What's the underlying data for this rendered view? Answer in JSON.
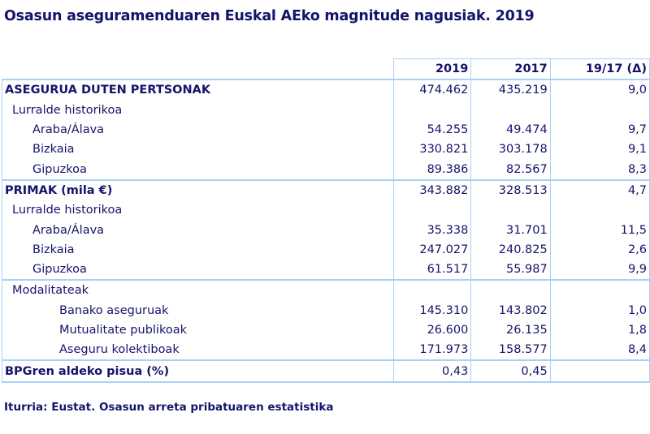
{
  "title": "Osasun aseguramenduaren Euskal AEko magnitude nagusiak. 2019",
  "columns": [
    "2019",
    "2017",
    "19/17 (Δ)"
  ],
  "rows": [
    {
      "label": "ASEGURUA DUTEN PERTSONAK",
      "v2019": "474.462",
      "v2017": "435.219",
      "delta": "9,0"
    },
    {
      "label": "Lurralde historikoa",
      "v2019": "",
      "v2017": "",
      "delta": ""
    },
    {
      "label": "Araba/Álava",
      "v2019": "54.255",
      "v2017": "49.474",
      "delta": "9,7"
    },
    {
      "label": "Bizkaia",
      "v2019": "330.821",
      "v2017": "303.178",
      "delta": "9,1"
    },
    {
      "label": "Gipuzkoa",
      "v2019": "89.386",
      "v2017": "82.567",
      "delta": "8,3"
    },
    {
      "label": "PRIMAK (mila €)",
      "v2019": "343.882",
      "v2017": "328.513",
      "delta": "4,7"
    },
    {
      "label": "Lurralde historikoa",
      "v2019": "",
      "v2017": "",
      "delta": ""
    },
    {
      "label": "Araba/Álava",
      "v2019": "35.338",
      "v2017": "31.701",
      "delta": "11,5"
    },
    {
      "label": "Bizkaia",
      "v2019": "247.027",
      "v2017": "240.825",
      "delta": "2,6"
    },
    {
      "label": "Gipuzkoa",
      "v2019": "61.517",
      "v2017": "55.987",
      "delta": "9,9"
    },
    {
      "label": "Modalitateak",
      "v2019": "",
      "v2017": "",
      "delta": ""
    },
    {
      "label": "Banako aseguruak",
      "v2019": "145.310",
      "v2017": "143.802",
      "delta": "1,0"
    },
    {
      "label": "Mutualitate publikoak",
      "v2019": "26.600",
      "v2017": "26.135",
      "delta": "1,8"
    },
    {
      "label": "Aseguru kolektiboak",
      "v2019": "171.973",
      "v2017": "158.577",
      "delta": "8,4"
    },
    {
      "label": "BPGren aldeko pisua (%)",
      "v2019": "0,43",
      "v2017": "0,45",
      "delta": ""
    }
  ],
  "source": "Iturria: Eustat. Osasun arreta pribatuaren estatistika",
  "colors": {
    "text": "#14146b",
    "border": "#a9d1f7"
  }
}
